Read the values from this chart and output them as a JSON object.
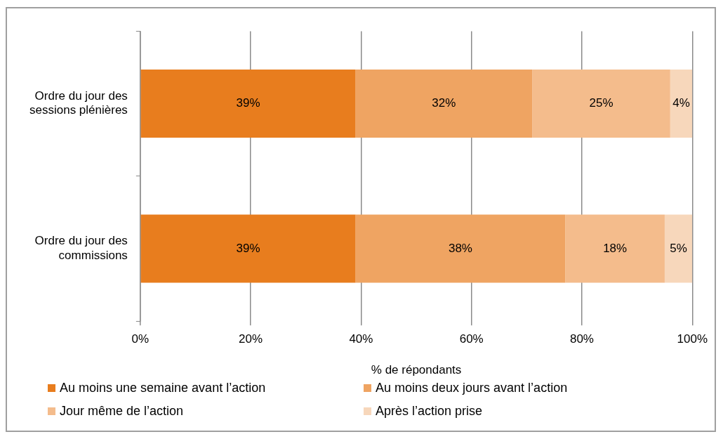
{
  "chart_data": {
    "type": "bar",
    "orientation": "horizontal",
    "stacked": true,
    "categories": [
      "Ordre du jour des sessions plénières",
      "Ordre du jour des commissions"
    ],
    "series": [
      {
        "name": "Au moins une semaine avant l’action",
        "color": "#e87d1e",
        "values": [
          39,
          39
        ],
        "value_labels": [
          "39%",
          "39%"
        ]
      },
      {
        "name": "Au moins deux jours avant l’action",
        "color": "#efa462",
        "values": [
          32,
          38
        ],
        "value_labels": [
          "32%",
          "38%"
        ]
      },
      {
        "name": "Jour même de l’action",
        "color": "#f4bc8c",
        "values": [
          25,
          18
        ],
        "value_labels": [
          "25%",
          "18%"
        ]
      },
      {
        "name": "Après l’action prise",
        "color": "#f7d7bb",
        "values": [
          4,
          5
        ],
        "value_labels": [
          "4%",
          "5%"
        ]
      }
    ],
    "xlim": [
      0,
      100
    ],
    "xticks": [
      {
        "value": 0,
        "label": "0%"
      },
      {
        "value": 20,
        "label": "20%"
      },
      {
        "value": 40,
        "label": "40%"
      },
      {
        "value": 60,
        "label": "60%"
      },
      {
        "value": 80,
        "label": "80%"
      },
      {
        "value": 100,
        "label": "100%"
      }
    ],
    "xlabel": "% de répondants",
    "grid": "x",
    "legend": "bottom"
  }
}
